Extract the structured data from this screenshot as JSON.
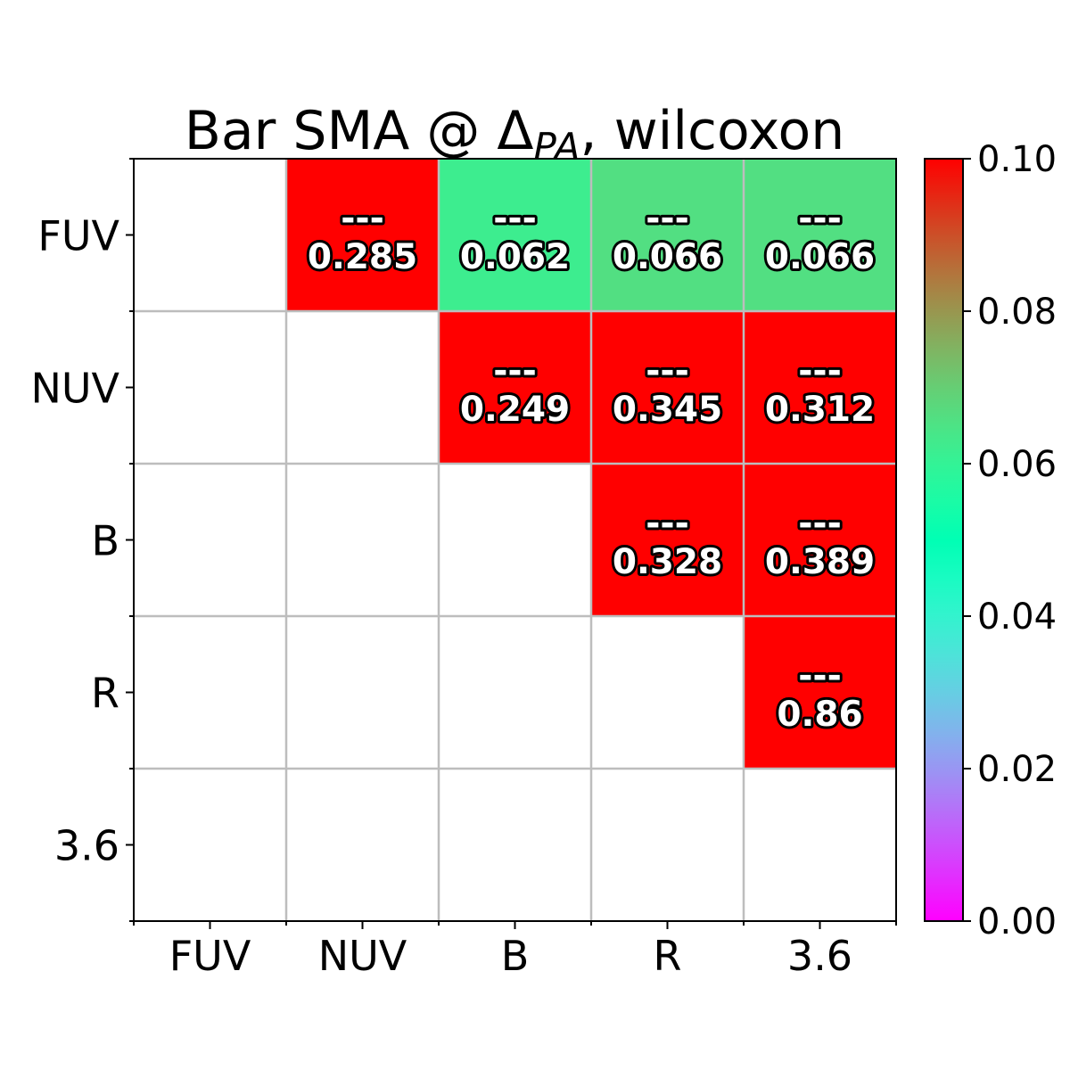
{
  "chart_data": {
    "type": "heatmap",
    "title": "Bar SMA @ Δ",
    "title_subscript": "PA",
    "title_suffix": ", wilcoxon",
    "rows": [
      "FUV",
      "NUV",
      "B",
      "R",
      "3.6"
    ],
    "columns": [
      "FUV",
      "NUV",
      "B",
      "R",
      "3.6"
    ],
    "cells": [
      {
        "row": 0,
        "col": 1,
        "value": 0.285,
        "top_label": "---",
        "label": "0.285"
      },
      {
        "row": 0,
        "col": 2,
        "value": 0.062,
        "top_label": "---",
        "label": "0.062"
      },
      {
        "row": 0,
        "col": 3,
        "value": 0.066,
        "top_label": "---",
        "label": "0.066"
      },
      {
        "row": 0,
        "col": 4,
        "value": 0.066,
        "top_label": "---",
        "label": "0.066"
      },
      {
        "row": 1,
        "col": 2,
        "value": 0.249,
        "top_label": "---",
        "label": "0.249"
      },
      {
        "row": 1,
        "col": 3,
        "value": 0.345,
        "top_label": "---",
        "label": "0.345"
      },
      {
        "row": 1,
        "col": 4,
        "value": 0.312,
        "top_label": "---",
        "label": "0.312"
      },
      {
        "row": 2,
        "col": 3,
        "value": 0.328,
        "top_label": "---",
        "label": "0.328"
      },
      {
        "row": 2,
        "col": 4,
        "value": 0.389,
        "top_label": "---",
        "label": "0.389"
      },
      {
        "row": 3,
        "col": 4,
        "value": 0.86,
        "top_label": "---",
        "label": "0.86"
      }
    ],
    "colorbar": {
      "colormap": "rainbow",
      "range": [
        0.0,
        0.1
      ],
      "tick_labels": [
        "0.00",
        "0.02",
        "0.04",
        "0.06",
        "0.08",
        "0.10"
      ],
      "tick_values": [
        0.0,
        0.02,
        0.04,
        0.06,
        0.08,
        0.1
      ]
    },
    "grid": true,
    "grid_color": "#bdbdbd"
  }
}
